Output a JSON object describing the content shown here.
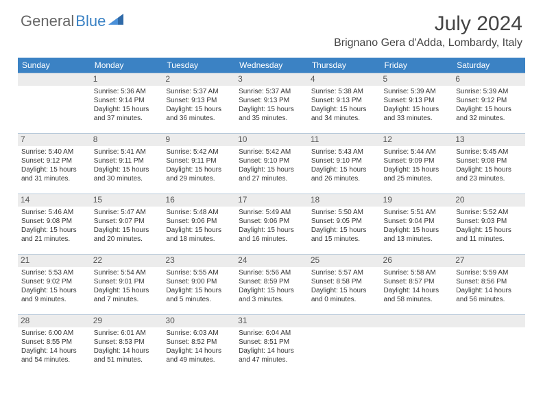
{
  "logo": {
    "part1": "General",
    "part2": "Blue"
  },
  "title": "July 2024",
  "location": "Brignano Gera d'Adda, Lombardy, Italy",
  "header_bg": "#3b82c4",
  "header_fg": "#ffffff",
  "day_headers": [
    "Sunday",
    "Monday",
    "Tuesday",
    "Wednesday",
    "Thursday",
    "Friday",
    "Saturday"
  ],
  "weeks": [
    [
      null,
      {
        "n": "1",
        "sr": "Sunrise: 5:36 AM",
        "ss": "Sunset: 9:14 PM",
        "d1": "Daylight: 15 hours",
        "d2": "and 37 minutes."
      },
      {
        "n": "2",
        "sr": "Sunrise: 5:37 AM",
        "ss": "Sunset: 9:13 PM",
        "d1": "Daylight: 15 hours",
        "d2": "and 36 minutes."
      },
      {
        "n": "3",
        "sr": "Sunrise: 5:37 AM",
        "ss": "Sunset: 9:13 PM",
        "d1": "Daylight: 15 hours",
        "d2": "and 35 minutes."
      },
      {
        "n": "4",
        "sr": "Sunrise: 5:38 AM",
        "ss": "Sunset: 9:13 PM",
        "d1": "Daylight: 15 hours",
        "d2": "and 34 minutes."
      },
      {
        "n": "5",
        "sr": "Sunrise: 5:39 AM",
        "ss": "Sunset: 9:13 PM",
        "d1": "Daylight: 15 hours",
        "d2": "and 33 minutes."
      },
      {
        "n": "6",
        "sr": "Sunrise: 5:39 AM",
        "ss": "Sunset: 9:12 PM",
        "d1": "Daylight: 15 hours",
        "d2": "and 32 minutes."
      }
    ],
    [
      {
        "n": "7",
        "sr": "Sunrise: 5:40 AM",
        "ss": "Sunset: 9:12 PM",
        "d1": "Daylight: 15 hours",
        "d2": "and 31 minutes."
      },
      {
        "n": "8",
        "sr": "Sunrise: 5:41 AM",
        "ss": "Sunset: 9:11 PM",
        "d1": "Daylight: 15 hours",
        "d2": "and 30 minutes."
      },
      {
        "n": "9",
        "sr": "Sunrise: 5:42 AM",
        "ss": "Sunset: 9:11 PM",
        "d1": "Daylight: 15 hours",
        "d2": "and 29 minutes."
      },
      {
        "n": "10",
        "sr": "Sunrise: 5:42 AM",
        "ss": "Sunset: 9:10 PM",
        "d1": "Daylight: 15 hours",
        "d2": "and 27 minutes."
      },
      {
        "n": "11",
        "sr": "Sunrise: 5:43 AM",
        "ss": "Sunset: 9:10 PM",
        "d1": "Daylight: 15 hours",
        "d2": "and 26 minutes."
      },
      {
        "n": "12",
        "sr": "Sunrise: 5:44 AM",
        "ss": "Sunset: 9:09 PM",
        "d1": "Daylight: 15 hours",
        "d2": "and 25 minutes."
      },
      {
        "n": "13",
        "sr": "Sunrise: 5:45 AM",
        "ss": "Sunset: 9:08 PM",
        "d1": "Daylight: 15 hours",
        "d2": "and 23 minutes."
      }
    ],
    [
      {
        "n": "14",
        "sr": "Sunrise: 5:46 AM",
        "ss": "Sunset: 9:08 PM",
        "d1": "Daylight: 15 hours",
        "d2": "and 21 minutes."
      },
      {
        "n": "15",
        "sr": "Sunrise: 5:47 AM",
        "ss": "Sunset: 9:07 PM",
        "d1": "Daylight: 15 hours",
        "d2": "and 20 minutes."
      },
      {
        "n": "16",
        "sr": "Sunrise: 5:48 AM",
        "ss": "Sunset: 9:06 PM",
        "d1": "Daylight: 15 hours",
        "d2": "and 18 minutes."
      },
      {
        "n": "17",
        "sr": "Sunrise: 5:49 AM",
        "ss": "Sunset: 9:06 PM",
        "d1": "Daylight: 15 hours",
        "d2": "and 16 minutes."
      },
      {
        "n": "18",
        "sr": "Sunrise: 5:50 AM",
        "ss": "Sunset: 9:05 PM",
        "d1": "Daylight: 15 hours",
        "d2": "and 15 minutes."
      },
      {
        "n": "19",
        "sr": "Sunrise: 5:51 AM",
        "ss": "Sunset: 9:04 PM",
        "d1": "Daylight: 15 hours",
        "d2": "and 13 minutes."
      },
      {
        "n": "20",
        "sr": "Sunrise: 5:52 AM",
        "ss": "Sunset: 9:03 PM",
        "d1": "Daylight: 15 hours",
        "d2": "and 11 minutes."
      }
    ],
    [
      {
        "n": "21",
        "sr": "Sunrise: 5:53 AM",
        "ss": "Sunset: 9:02 PM",
        "d1": "Daylight: 15 hours",
        "d2": "and 9 minutes."
      },
      {
        "n": "22",
        "sr": "Sunrise: 5:54 AM",
        "ss": "Sunset: 9:01 PM",
        "d1": "Daylight: 15 hours",
        "d2": "and 7 minutes."
      },
      {
        "n": "23",
        "sr": "Sunrise: 5:55 AM",
        "ss": "Sunset: 9:00 PM",
        "d1": "Daylight: 15 hours",
        "d2": "and 5 minutes."
      },
      {
        "n": "24",
        "sr": "Sunrise: 5:56 AM",
        "ss": "Sunset: 8:59 PM",
        "d1": "Daylight: 15 hours",
        "d2": "and 3 minutes."
      },
      {
        "n": "25",
        "sr": "Sunrise: 5:57 AM",
        "ss": "Sunset: 8:58 PM",
        "d1": "Daylight: 15 hours",
        "d2": "and 0 minutes."
      },
      {
        "n": "26",
        "sr": "Sunrise: 5:58 AM",
        "ss": "Sunset: 8:57 PM",
        "d1": "Daylight: 14 hours",
        "d2": "and 58 minutes."
      },
      {
        "n": "27",
        "sr": "Sunrise: 5:59 AM",
        "ss": "Sunset: 8:56 PM",
        "d1": "Daylight: 14 hours",
        "d2": "and 56 minutes."
      }
    ],
    [
      {
        "n": "28",
        "sr": "Sunrise: 6:00 AM",
        "ss": "Sunset: 8:55 PM",
        "d1": "Daylight: 14 hours",
        "d2": "and 54 minutes."
      },
      {
        "n": "29",
        "sr": "Sunrise: 6:01 AM",
        "ss": "Sunset: 8:53 PM",
        "d1": "Daylight: 14 hours",
        "d2": "and 51 minutes."
      },
      {
        "n": "30",
        "sr": "Sunrise: 6:03 AM",
        "ss": "Sunset: 8:52 PM",
        "d1": "Daylight: 14 hours",
        "d2": "and 49 minutes."
      },
      {
        "n": "31",
        "sr": "Sunrise: 6:04 AM",
        "ss": "Sunset: 8:51 PM",
        "d1": "Daylight: 14 hours",
        "d2": "and 47 minutes."
      },
      null,
      null,
      null
    ]
  ]
}
